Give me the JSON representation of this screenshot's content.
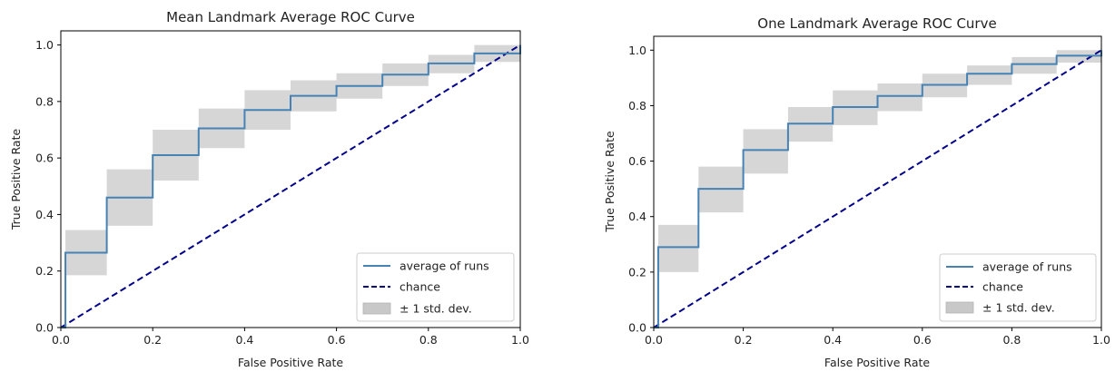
{
  "chart_data": [
    {
      "type": "line",
      "title": "Mean Landmark Average ROC Curve",
      "xlabel": "False Positive Rate",
      "ylabel": "True Positive Rate",
      "xlim": [
        0.0,
        1.0
      ],
      "ylim": [
        0.0,
        1.05
      ],
      "xticks": [
        "0.0",
        "0.2",
        "0.4",
        "0.6",
        "0.8",
        "1.0"
      ],
      "yticks": [
        "0.0",
        "0.2",
        "0.4",
        "0.6",
        "0.8",
        "1.0"
      ],
      "grid": false,
      "legend_position": "lower right",
      "legend": {
        "average": "average of runs",
        "chance": "chance",
        "band": "± 1 std. dev."
      },
      "series": [
        {
          "name": "average of runs",
          "style": "step",
          "color": "#4682b4",
          "x": [
            0.0,
            0.01,
            0.1,
            0.2,
            0.3,
            0.4,
            0.5,
            0.6,
            0.7,
            0.8,
            0.9,
            1.0
          ],
          "y": [
            0.0,
            0.265,
            0.46,
            0.61,
            0.705,
            0.77,
            0.82,
            0.855,
            0.895,
            0.935,
            0.97,
            1.0
          ]
        },
        {
          "name": "chance",
          "style": "dashed",
          "color": "#00008b",
          "x": [
            0.0,
            1.0
          ],
          "y": [
            0.0,
            1.0
          ]
        },
        {
          "name": "± 1 std. dev.",
          "style": "band",
          "color": "#c8c8c8",
          "x": [
            0.0,
            0.01,
            0.1,
            0.2,
            0.3,
            0.4,
            0.5,
            0.6,
            0.7,
            0.8,
            0.9,
            1.0
          ],
          "upper": [
            0.0,
            0.345,
            0.56,
            0.7,
            0.775,
            0.84,
            0.875,
            0.9,
            0.935,
            0.965,
            1.0,
            1.0
          ],
          "lower": [
            0.0,
            0.185,
            0.36,
            0.52,
            0.635,
            0.7,
            0.765,
            0.81,
            0.855,
            0.9,
            0.94,
            0.98
          ]
        }
      ]
    },
    {
      "type": "line",
      "title": "One Landmark Average ROC Curve",
      "xlabel": "False Positive Rate",
      "ylabel": "True Positive Rate",
      "xlim": [
        0.0,
        1.0
      ],
      "ylim": [
        0.0,
        1.05
      ],
      "xticks": [
        "0.0",
        "0.2",
        "0.4",
        "0.6",
        "0.8",
        "1.0"
      ],
      "yticks": [
        "0.0",
        "0.2",
        "0.4",
        "0.6",
        "0.8",
        "1.0"
      ],
      "grid": false,
      "legend_position": "lower right",
      "legend": {
        "average": "average of runs",
        "chance": "chance",
        "band": "± 1 std. dev."
      },
      "series": [
        {
          "name": "average of runs",
          "style": "step",
          "color": "#4682b4",
          "x": [
            0.0,
            0.01,
            0.1,
            0.2,
            0.3,
            0.4,
            0.5,
            0.6,
            0.7,
            0.8,
            0.9,
            1.0
          ],
          "y": [
            0.0,
            0.29,
            0.5,
            0.64,
            0.735,
            0.795,
            0.835,
            0.875,
            0.915,
            0.95,
            0.98,
            1.0
          ]
        },
        {
          "name": "chance",
          "style": "dashed",
          "color": "#00008b",
          "x": [
            0.0,
            1.0
          ],
          "y": [
            0.0,
            1.0
          ]
        },
        {
          "name": "± 1 std. dev.",
          "style": "band",
          "color": "#c8c8c8",
          "x": [
            0.0,
            0.01,
            0.1,
            0.2,
            0.3,
            0.4,
            0.5,
            0.6,
            0.7,
            0.8,
            0.9,
            1.0
          ],
          "upper": [
            0.0,
            0.37,
            0.58,
            0.715,
            0.795,
            0.855,
            0.88,
            0.915,
            0.945,
            0.975,
            1.0,
            1.0
          ],
          "lower": [
            0.0,
            0.2,
            0.415,
            0.555,
            0.67,
            0.73,
            0.78,
            0.83,
            0.875,
            0.915,
            0.955,
            0.985
          ]
        }
      ]
    }
  ]
}
